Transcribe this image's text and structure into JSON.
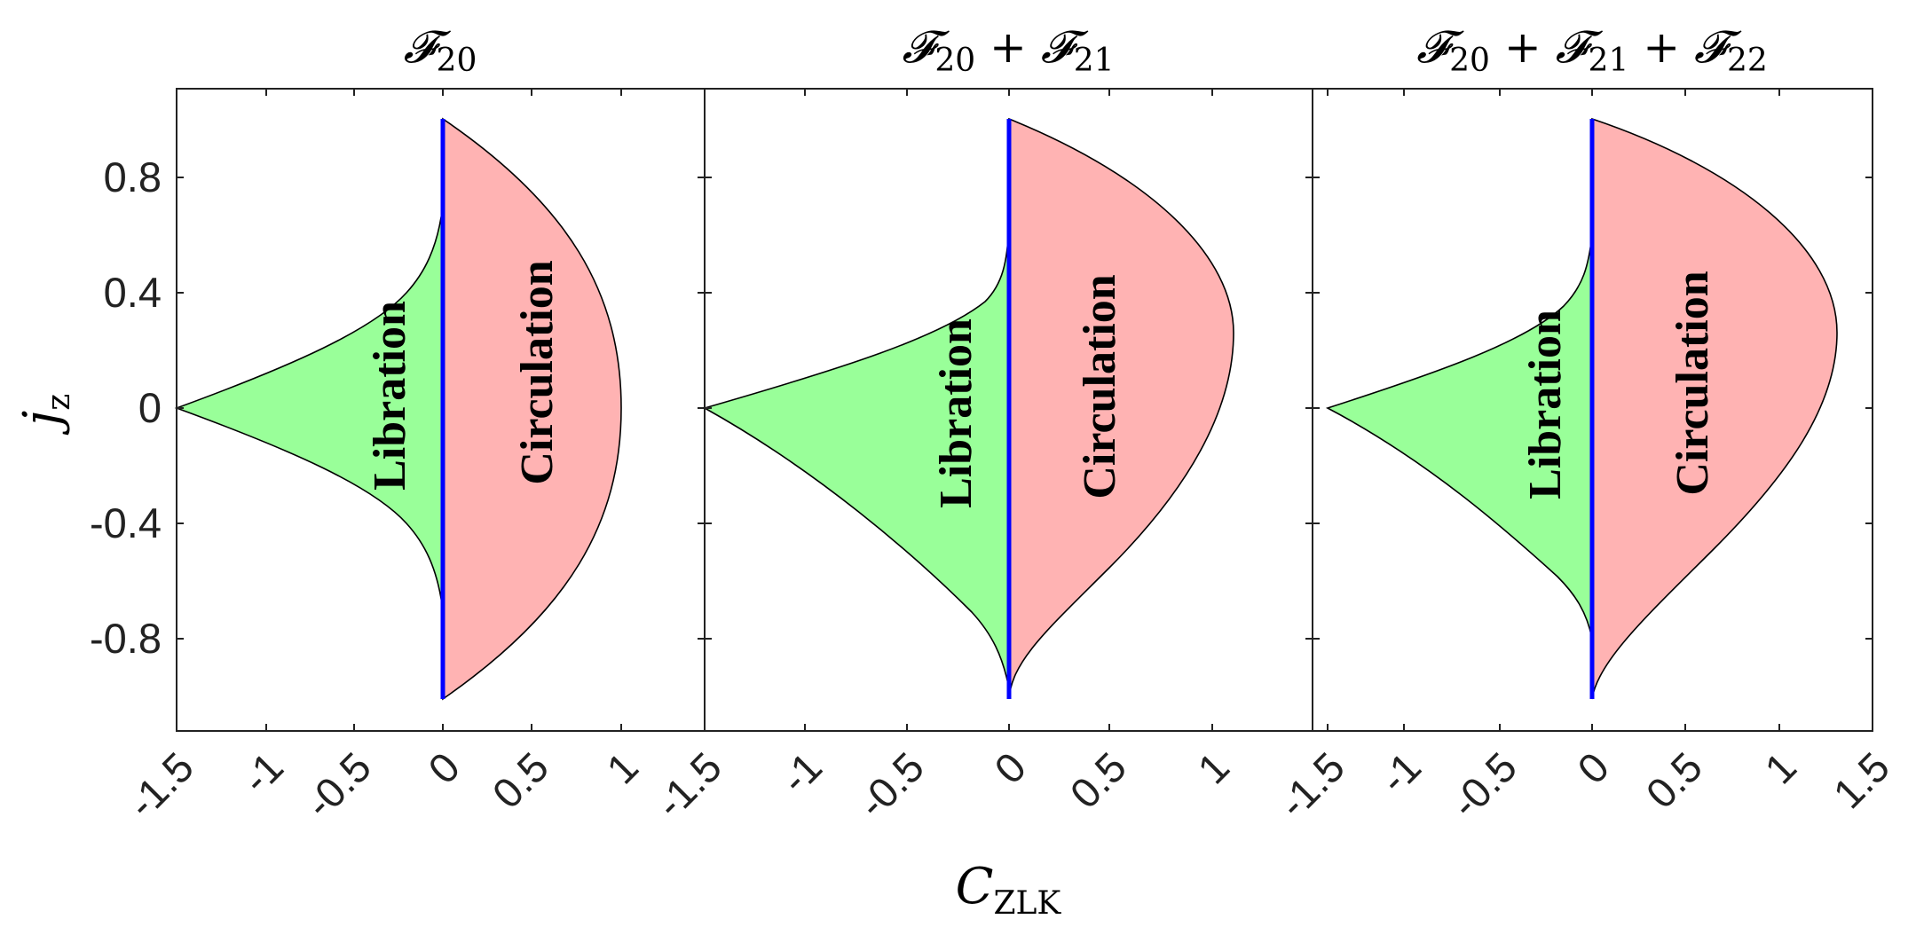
{
  "figure": {
    "xlabel": "C",
    "xlabel_sub": "ZLK",
    "ylabel": "j",
    "ylabel_sub": "z"
  },
  "colors": {
    "libration_fill": "#99ff99",
    "circulation_fill": "#ffb3b3",
    "separatrix": "#0000ff",
    "outline": "#000000"
  },
  "chart_data": [
    {
      "type": "area",
      "title": "𝓕",
      "title_sub": "20",
      "xlabel": "C_ZLK",
      "ylabel": "j_z",
      "xlim": [
        -1.5,
        1.5
      ],
      "ylim": [
        -1.08,
        1.08
      ],
      "xticks": [
        "-1.5",
        "-1",
        "-0.5",
        "0",
        "0.5",
        "1"
      ],
      "yticks": [
        "-0.8",
        "-0.4",
        "0",
        "0.4",
        "0.8"
      ],
      "grid": false,
      "regions": [
        {
          "name": "Libration",
          "boundary": [
            [
              -1.5,
              0
            ],
            [
              -0.8,
              0.22
            ],
            [
              -0.3,
              0.42
            ],
            [
              -0.05,
              0.62
            ],
            [
              0,
              0.71
            ],
            [
              0,
              -0.71
            ],
            [
              -0.05,
              -0.62
            ],
            [
              -0.3,
              -0.42
            ],
            [
              -0.8,
              -0.22
            ],
            [
              -1.5,
              0
            ]
          ]
        },
        {
          "name": "Circulation",
          "boundary": [
            [
              0,
              1.0
            ],
            [
              0.3,
              0.88
            ],
            [
              0.6,
              0.66
            ],
            [
              0.85,
              0.36
            ],
            [
              1.0,
              0
            ],
            [
              0.85,
              -0.36
            ],
            [
              0.6,
              -0.66
            ],
            [
              0.3,
              -0.88
            ],
            [
              0,
              -1.0
            ]
          ]
        }
      ],
      "separatrix": {
        "x": 0,
        "y_range": [
          -1.0,
          1.0
        ]
      }
    },
    {
      "type": "area",
      "title": "𝓕",
      "title_sub": "20",
      "title_2": "𝓕",
      "title_2_sub": "21",
      "xlabel": "C_ZLK",
      "ylabel": "j_z",
      "xlim": [
        -1.5,
        1.5
      ],
      "ylim": [
        -1.08,
        1.08
      ],
      "xticks": [
        "-1.5",
        "-1",
        "-0.5",
        "0",
        "0.5",
        "1"
      ],
      "yticks": [
        "-0.8",
        "-0.4",
        "0",
        "0.4",
        "0.8"
      ],
      "grid": false,
      "regions": [
        {
          "name": "Libration",
          "boundary": [
            [
              -1.5,
              0
            ],
            [
              -0.8,
              0.2
            ],
            [
              -0.3,
              0.38
            ],
            [
              -0.05,
              0.55
            ],
            [
              0,
              0.63
            ],
            [
              0,
              -0.84
            ],
            [
              -0.05,
              -0.74
            ],
            [
              -0.3,
              -0.52
            ],
            [
              -0.8,
              -0.28
            ],
            [
              -1.5,
              0
            ]
          ]
        },
        {
          "name": "Circulation",
          "boundary": [
            [
              0,
              1.0
            ],
            [
              0.3,
              0.9
            ],
            [
              0.6,
              0.72
            ],
            [
              0.85,
              0.5
            ],
            [
              1.0,
              0.26
            ],
            [
              1.1,
              0.26
            ],
            [
              1.06,
              0
            ],
            [
              0.9,
              -0.3
            ],
            [
              0.6,
              -0.6
            ],
            [
              0.25,
              -0.85
            ],
            [
              0.04,
              -0.98
            ],
            [
              0,
              -1.0
            ]
          ]
        }
      ],
      "separatrix": {
        "x": 0,
        "y_range": [
          -1.0,
          1.0
        ]
      }
    },
    {
      "type": "area",
      "title": "𝓕",
      "title_sub": "20",
      "title_2": "𝓕",
      "title_2_sub": "21",
      "title_3": "𝓕",
      "title_3_sub": "22",
      "xlabel": "C_ZLK",
      "ylabel": "j_z",
      "xlim": [
        -1.5,
        1.5
      ],
      "ylim": [
        -1.08,
        1.08
      ],
      "xticks": [
        "-1.5",
        "-1",
        "-0.5",
        "0",
        "0.5",
        "1",
        "1.5"
      ],
      "yticks": [
        "-0.8",
        "-0.4",
        "0",
        "0.4",
        "0.8"
      ],
      "grid": false,
      "regions": [
        {
          "name": "Libration",
          "boundary": [
            [
              -1.42,
              0
            ],
            [
              -0.8,
              0.2
            ],
            [
              -0.3,
              0.37
            ],
            [
              -0.05,
              0.53
            ],
            [
              0,
              0.6
            ],
            [
              0,
              -0.78
            ],
            [
              -0.05,
              -0.7
            ],
            [
              -0.3,
              -0.5
            ],
            [
              -0.8,
              -0.26
            ],
            [
              -1.42,
              0
            ]
          ]
        },
        {
          "name": "Circulation",
          "boundary": [
            [
              0,
              1.0
            ],
            [
              0.3,
              0.9
            ],
            [
              0.65,
              0.74
            ],
            [
              0.95,
              0.5
            ],
            [
              1.2,
              0.25
            ],
            [
              1.2,
              0.25
            ],
            [
              1.08,
              -0.05
            ],
            [
              0.82,
              -0.35
            ],
            [
              0.5,
              -0.64
            ],
            [
              0.22,
              -0.85
            ],
            [
              0.04,
              -0.97
            ],
            [
              0,
              -1.0
            ]
          ]
        }
      ],
      "separatrix": {
        "x": 0,
        "y_range": [
          -1.0,
          1.0
        ]
      }
    }
  ]
}
